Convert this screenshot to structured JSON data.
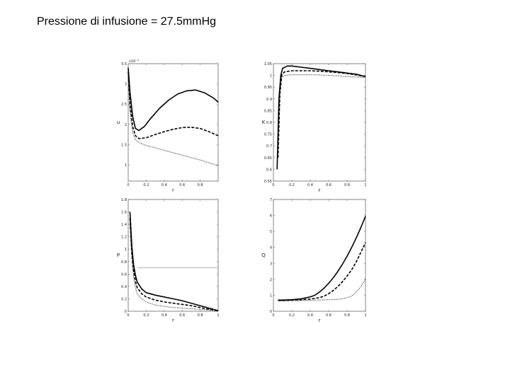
{
  "title": "Pressione di infusione = 27.5mm​Hg",
  "chart_data": [
    {
      "type": "line",
      "panel": "top-left",
      "xlabel": "r",
      "ylabel": "u",
      "exponent_label": "x10⁻³",
      "xlim": [
        0,
        1
      ],
      "ylim": [
        0.6,
        3.5
      ],
      "xticks": [
        0,
        0.2,
        0.4,
        0.6,
        0.8
      ],
      "yticks": [
        3.5,
        3,
        2.5,
        2,
        1.5,
        1
      ],
      "grid": false,
      "legend": "none",
      "series": [
        {
          "style": "solid",
          "x": [
            0,
            0.02,
            0.05,
            0.08,
            0.12,
            0.18,
            0.25,
            0.35,
            0.45,
            0.55,
            0.65,
            0.75,
            0.85,
            0.95,
            1
          ],
          "y": [
            3.4,
            2.8,
            2.2,
            1.9,
            1.85,
            1.95,
            2.15,
            2.4,
            2.6,
            2.75,
            2.83,
            2.85,
            2.78,
            2.65,
            2.55
          ]
        },
        {
          "style": "dashed",
          "x": [
            0,
            0.02,
            0.05,
            0.08,
            0.12,
            0.2,
            0.3,
            0.4,
            0.5,
            0.6,
            0.7,
            0.8,
            0.9,
            1
          ],
          "y": [
            3.3,
            2.5,
            1.95,
            1.72,
            1.65,
            1.67,
            1.75,
            1.82,
            1.88,
            1.92,
            1.93,
            1.9,
            1.82,
            1.72
          ]
        },
        {
          "style": "dotted",
          "x": [
            0,
            0.02,
            0.05,
            0.08,
            0.12,
            0.2,
            0.3,
            0.4,
            0.5,
            0.6,
            0.7,
            0.8,
            0.9,
            1
          ],
          "y": [
            3.2,
            2.3,
            1.8,
            1.62,
            1.55,
            1.48,
            1.42,
            1.36,
            1.3,
            1.24,
            1.18,
            1.12,
            1.05,
            0.98
          ]
        }
      ]
    },
    {
      "type": "line",
      "panel": "top-right",
      "xlabel": "r",
      "ylabel": "K",
      "xlim": [
        0,
        1
      ],
      "ylim": [
        0.55,
        1.05
      ],
      "xticks": [
        0,
        0.2,
        0.4,
        0.6,
        0.8,
        1
      ],
      "yticks": [
        1.05,
        1,
        0.95,
        0.9,
        0.85,
        0.8,
        0.75,
        0.7,
        0.65,
        0.6,
        0.55
      ],
      "grid": false,
      "legend": "none",
      "series": [
        {
          "style": "solid",
          "x": [
            0.04,
            0.06,
            0.08,
            0.1,
            0.15,
            0.2,
            0.3,
            0.4,
            0.5,
            0.6,
            0.7,
            0.8,
            0.9,
            1
          ],
          "y": [
            0.6,
            0.9,
            1.0,
            1.03,
            1.04,
            1.04,
            1.035,
            1.03,
            1.025,
            1.02,
            1.015,
            1.01,
            1.005,
            0.995
          ]
        },
        {
          "style": "dashed",
          "x": [
            0.05,
            0.07,
            0.09,
            0.12,
            0.2,
            0.3,
            0.4,
            0.5,
            0.6,
            0.7,
            0.8,
            0.9,
            1
          ],
          "y": [
            0.65,
            0.92,
            1.0,
            1.015,
            1.02,
            1.02,
            1.02,
            1.018,
            1.015,
            1.012,
            1.008,
            1.002,
            0.995
          ]
        },
        {
          "style": "dotted",
          "x": [
            0.05,
            0.07,
            0.09,
            0.12,
            0.2,
            0.3,
            0.4,
            0.5,
            0.6,
            0.7,
            0.8,
            0.9,
            1
          ],
          "y": [
            0.7,
            0.93,
            0.99,
            1.0,
            1.003,
            1.003,
            1.003,
            1.002,
            1.0,
            0.998,
            0.995,
            0.993,
            0.99
          ]
        }
      ]
    },
    {
      "type": "line",
      "panel": "bottom-left",
      "xlabel": "r",
      "ylabel": "P",
      "xlim": [
        0,
        1
      ],
      "ylim": [
        0,
        1.8
      ],
      "xticks": [
        0,
        0.2,
        0.4,
        0.6,
        0.8,
        1
      ],
      "yticks": [
        1.8,
        1.6,
        1.4,
        1.2,
        1,
        0.8,
        0.6,
        0.4,
        0.2,
        0
      ],
      "reference_line_y": 0.7,
      "grid": false,
      "legend": "none",
      "series": [
        {
          "style": "solid",
          "x": [
            0.02,
            0.04,
            0.06,
            0.08,
            0.1,
            0.15,
            0.2,
            0.3,
            0.4,
            0.5,
            0.6,
            0.7,
            0.8,
            0.9,
            1
          ],
          "y": [
            1.6,
            1.05,
            0.75,
            0.58,
            0.47,
            0.36,
            0.3,
            0.26,
            0.23,
            0.2,
            0.17,
            0.13,
            0.09,
            0.05,
            0.01
          ]
        },
        {
          "style": "dashed",
          "x": [
            0.02,
            0.04,
            0.06,
            0.08,
            0.1,
            0.15,
            0.2,
            0.3,
            0.4,
            0.5,
            0.6,
            0.7,
            0.8,
            0.9,
            1
          ],
          "y": [
            1.5,
            0.95,
            0.65,
            0.48,
            0.38,
            0.28,
            0.23,
            0.18,
            0.15,
            0.13,
            0.11,
            0.09,
            0.06,
            0.03,
            0.01
          ]
        },
        {
          "style": "dotted",
          "x": [
            0.02,
            0.04,
            0.06,
            0.08,
            0.1,
            0.15,
            0.2,
            0.3,
            0.4,
            0.5,
            0.6,
            0.7,
            0.8,
            0.9,
            1
          ],
          "y": [
            1.4,
            0.85,
            0.55,
            0.38,
            0.28,
            0.2,
            0.15,
            0.1,
            0.08,
            0.06,
            0.05,
            0.04,
            0.03,
            0.02,
            0.01
          ]
        }
      ]
    },
    {
      "type": "line",
      "panel": "bottom-right",
      "xlabel": "r",
      "ylabel": "Q",
      "xlim": [
        0,
        1
      ],
      "ylim": [
        0,
        7
      ],
      "xticks": [
        0,
        0.2,
        0.4,
        0.6,
        0.8,
        1
      ],
      "yticks": [
        7,
        6,
        5,
        4,
        3,
        2,
        1,
        0
      ],
      "grid": false,
      "legend": "none",
      "series": [
        {
          "style": "solid",
          "x": [
            0.05,
            0.1,
            0.2,
            0.3,
            0.4,
            0.45,
            0.5,
            0.55,
            0.6,
            0.65,
            0.7,
            0.75,
            0.8,
            0.85,
            0.9,
            0.95,
            1
          ],
          "y": [
            0.7,
            0.7,
            0.72,
            0.78,
            0.9,
            1.0,
            1.2,
            1.45,
            1.75,
            2.1,
            2.5,
            2.95,
            3.45,
            4.0,
            4.6,
            5.25,
            5.95
          ]
        },
        {
          "style": "dashed",
          "x": [
            0.05,
            0.1,
            0.2,
            0.3,
            0.4,
            0.5,
            0.55,
            0.6,
            0.65,
            0.7,
            0.75,
            0.8,
            0.85,
            0.9,
            0.95,
            1
          ],
          "y": [
            0.68,
            0.68,
            0.7,
            0.72,
            0.76,
            0.85,
            0.95,
            1.1,
            1.3,
            1.55,
            1.85,
            2.2,
            2.6,
            3.1,
            3.7,
            4.3
          ]
        },
        {
          "style": "dotted",
          "x": [
            0.05,
            0.1,
            0.2,
            0.3,
            0.4,
            0.5,
            0.6,
            0.7,
            0.75,
            0.8,
            0.85,
            0.9,
            0.95,
            1
          ],
          "y": [
            0.65,
            0.65,
            0.66,
            0.67,
            0.68,
            0.7,
            0.72,
            0.75,
            0.78,
            0.85,
            0.95,
            1.2,
            1.55,
            2.0
          ]
        }
      ]
    }
  ]
}
